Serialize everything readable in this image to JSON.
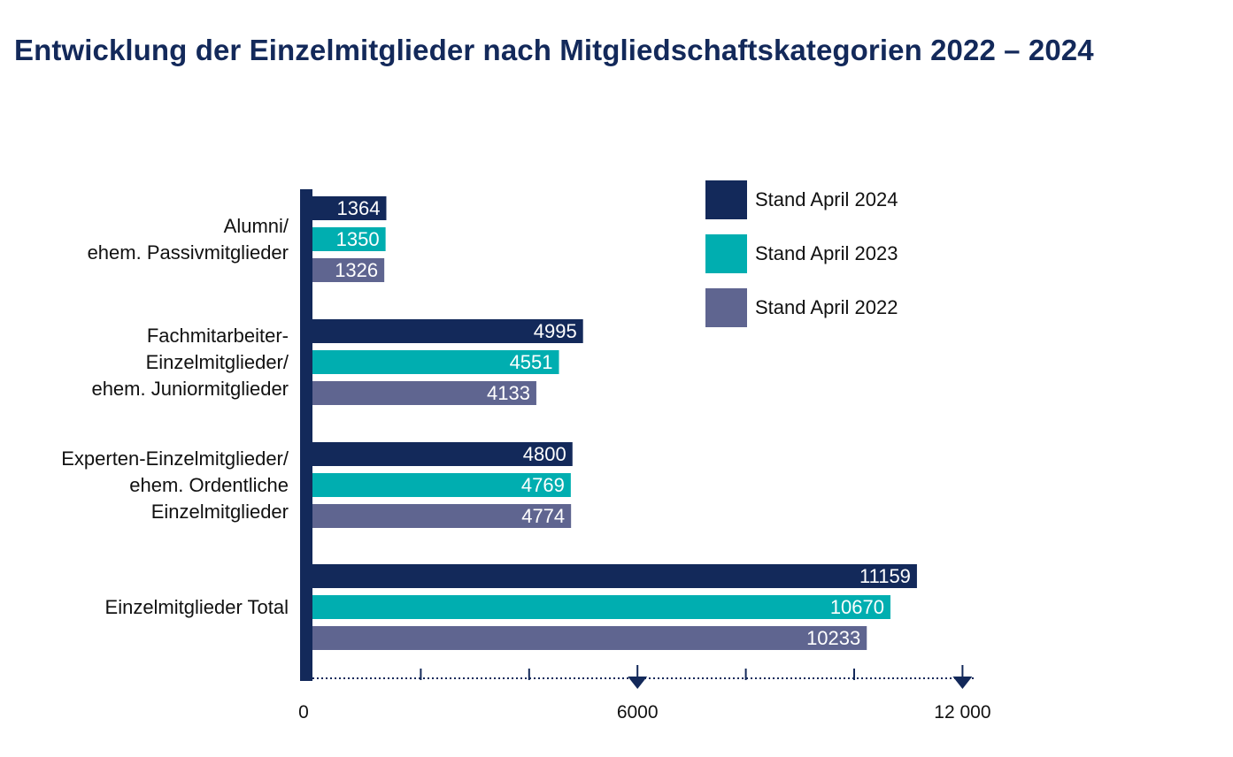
{
  "title": "Entwicklung der Einzelmitglieder nach Mitgliedschaftskategorien 2022 – 2024",
  "chart_data": {
    "type": "bar",
    "orientation": "horizontal",
    "categories": [
      [
        "Alumni/",
        "ehem. Passivmitglieder"
      ],
      [
        "Fachmitarbeiter-",
        "Einzelmitglieder/",
        "ehem. Juniormitglieder"
      ],
      [
        "Experten-Einzelmitglieder/",
        "ehem. Ordentliche",
        "Einzelmitglieder"
      ],
      [
        "Einzelmitglieder Total"
      ]
    ],
    "series": [
      {
        "name": "Stand April 2024",
        "color": "#13295a",
        "values": [
          1364,
          4995,
          4800,
          11159
        ]
      },
      {
        "name": "Stand April 2023",
        "color": "#00aeb0",
        "values": [
          1350,
          4551,
          4769,
          10670
        ]
      },
      {
        "name": "Stand April 2022",
        "color": "#5f6590",
        "values": [
          1326,
          4133,
          4774,
          10233
        ]
      }
    ],
    "xlim": [
      0,
      12000
    ],
    "xticks_labeled": [
      "0",
      "6000",
      "12 000"
    ],
    "legend_position": "top-right",
    "data_labels": true
  }
}
